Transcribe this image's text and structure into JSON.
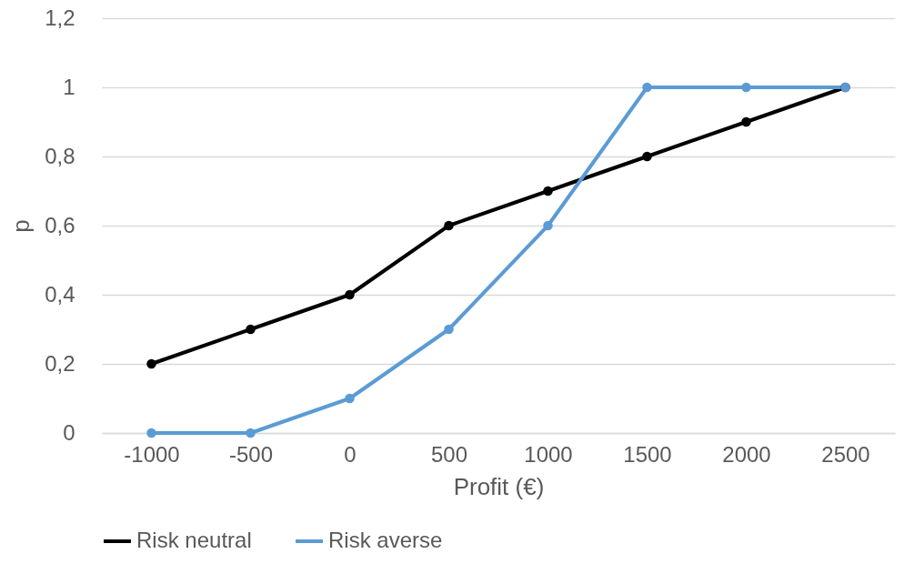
{
  "chart_data": {
    "type": "line",
    "xlabel": "Profit (€)",
    "ylabel": "p",
    "categories": [
      "-1000",
      "-500",
      "0",
      "500",
      "1000",
      "1500",
      "2000",
      "2500"
    ],
    "series": [
      {
        "name": "Risk neutral",
        "color": "#000000",
        "values": [
          0.2,
          0.3,
          0.4,
          0.6,
          0.7,
          0.8,
          0.9,
          1
        ]
      },
      {
        "name": "Risk averse",
        "color": "#5b9bd5",
        "values": [
          0,
          0,
          0.1,
          0.3,
          0.6,
          1,
          1,
          1
        ]
      }
    ],
    "ylim": [
      0,
      1.2
    ],
    "yticks": [
      {
        "value": 0,
        "label": "0"
      },
      {
        "value": 0.2,
        "label": "0,2"
      },
      {
        "value": 0.4,
        "label": "0,4"
      },
      {
        "value": 0.6,
        "label": "0,6"
      },
      {
        "value": 0.8,
        "label": "0,8"
      },
      {
        "value": 1,
        "label": "1"
      },
      {
        "value": 1.2,
        "label": "1,2"
      }
    ],
    "grid": "y",
    "legend": "bottom",
    "marker": "circle",
    "line_style": "solid"
  }
}
